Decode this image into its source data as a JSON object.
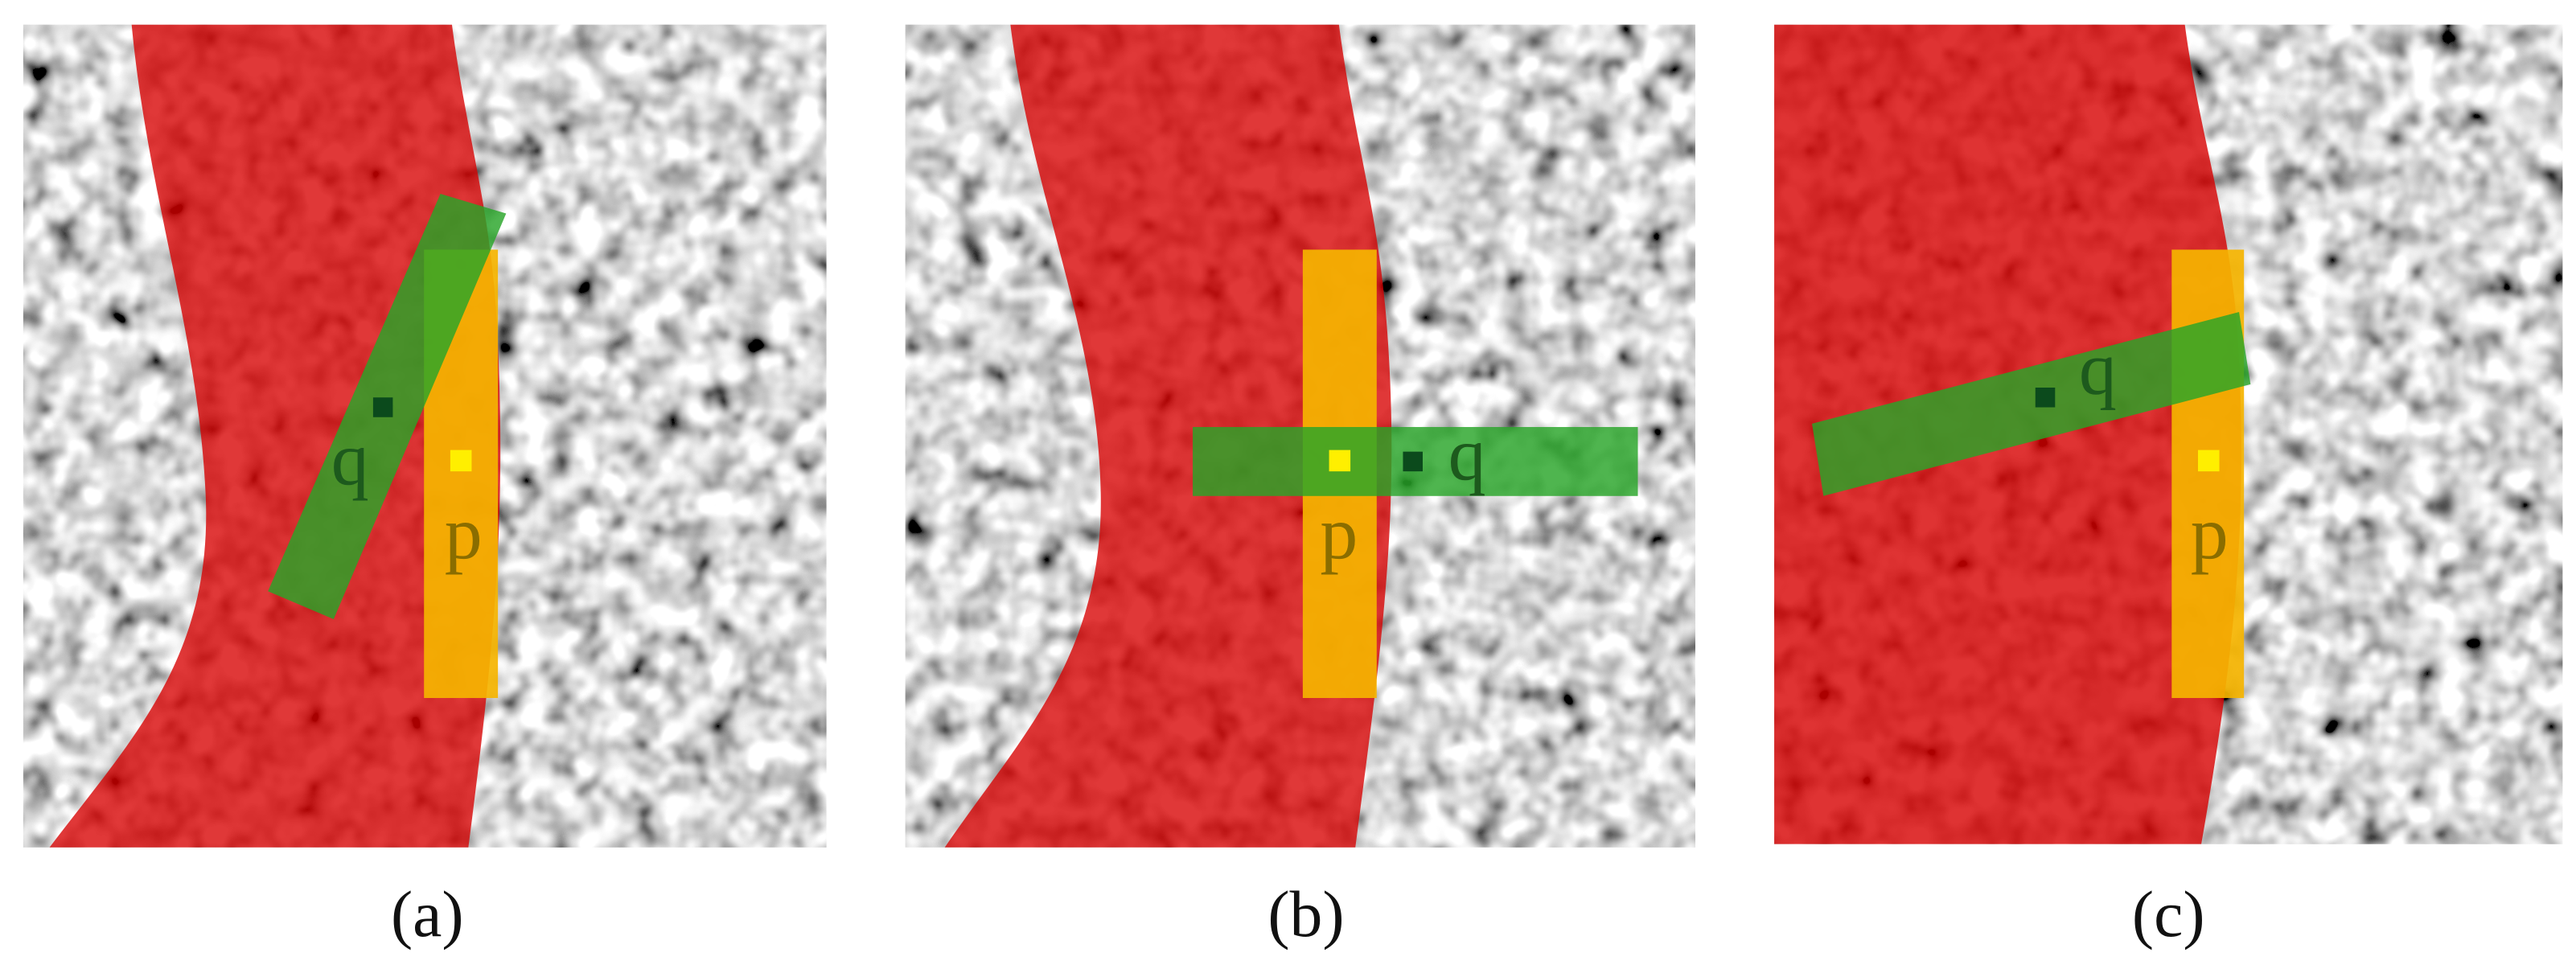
{
  "panels": [
    {
      "caption": "(a)",
      "q_label": "q",
      "p_label": "p"
    },
    {
      "caption": "(b)",
      "q_label": "q",
      "p_label": "p"
    },
    {
      "caption": "(c)",
      "q_label": "q",
      "p_label": "p"
    }
  ]
}
